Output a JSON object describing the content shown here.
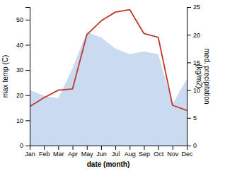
{
  "chart_data": {
    "type": "line",
    "xlabel": "date (month)",
    "ylabel": "max temp (C)",
    "y2label": "med. precipitation\n(kg/m2)",
    "categories": [
      "Jan",
      "Feb",
      "Mar",
      "Apr",
      "May",
      "Jun",
      "Jul",
      "Aug",
      "Sep",
      "Oct",
      "Nov",
      "Dec"
    ],
    "series": [
      {
        "type": "area",
        "axis": "y2",
        "color": "#aec6e8",
        "values": [
          10.0,
          9.0,
          8.5,
          14.0,
          20.5,
          19.5,
          17.5,
          16.5,
          17.0,
          16.5,
          7.5,
          12.0
        ]
      },
      {
        "type": "line",
        "color": "#c0392b",
        "values": [
          15.5,
          19.0,
          22.0,
          22.5,
          44.0,
          49.5,
          53.0,
          54.0,
          44.5,
          43.0,
          16.0,
          14.0
        ]
      }
    ],
    "ylim": [
      0,
      55
    ],
    "yticks": [
      0,
      10,
      20,
      30,
      40,
      50
    ],
    "y2lim": [
      0,
      25
    ],
    "y2ticks": [
      0,
      5,
      10,
      15,
      20,
      25
    ],
    "grid": false
  }
}
